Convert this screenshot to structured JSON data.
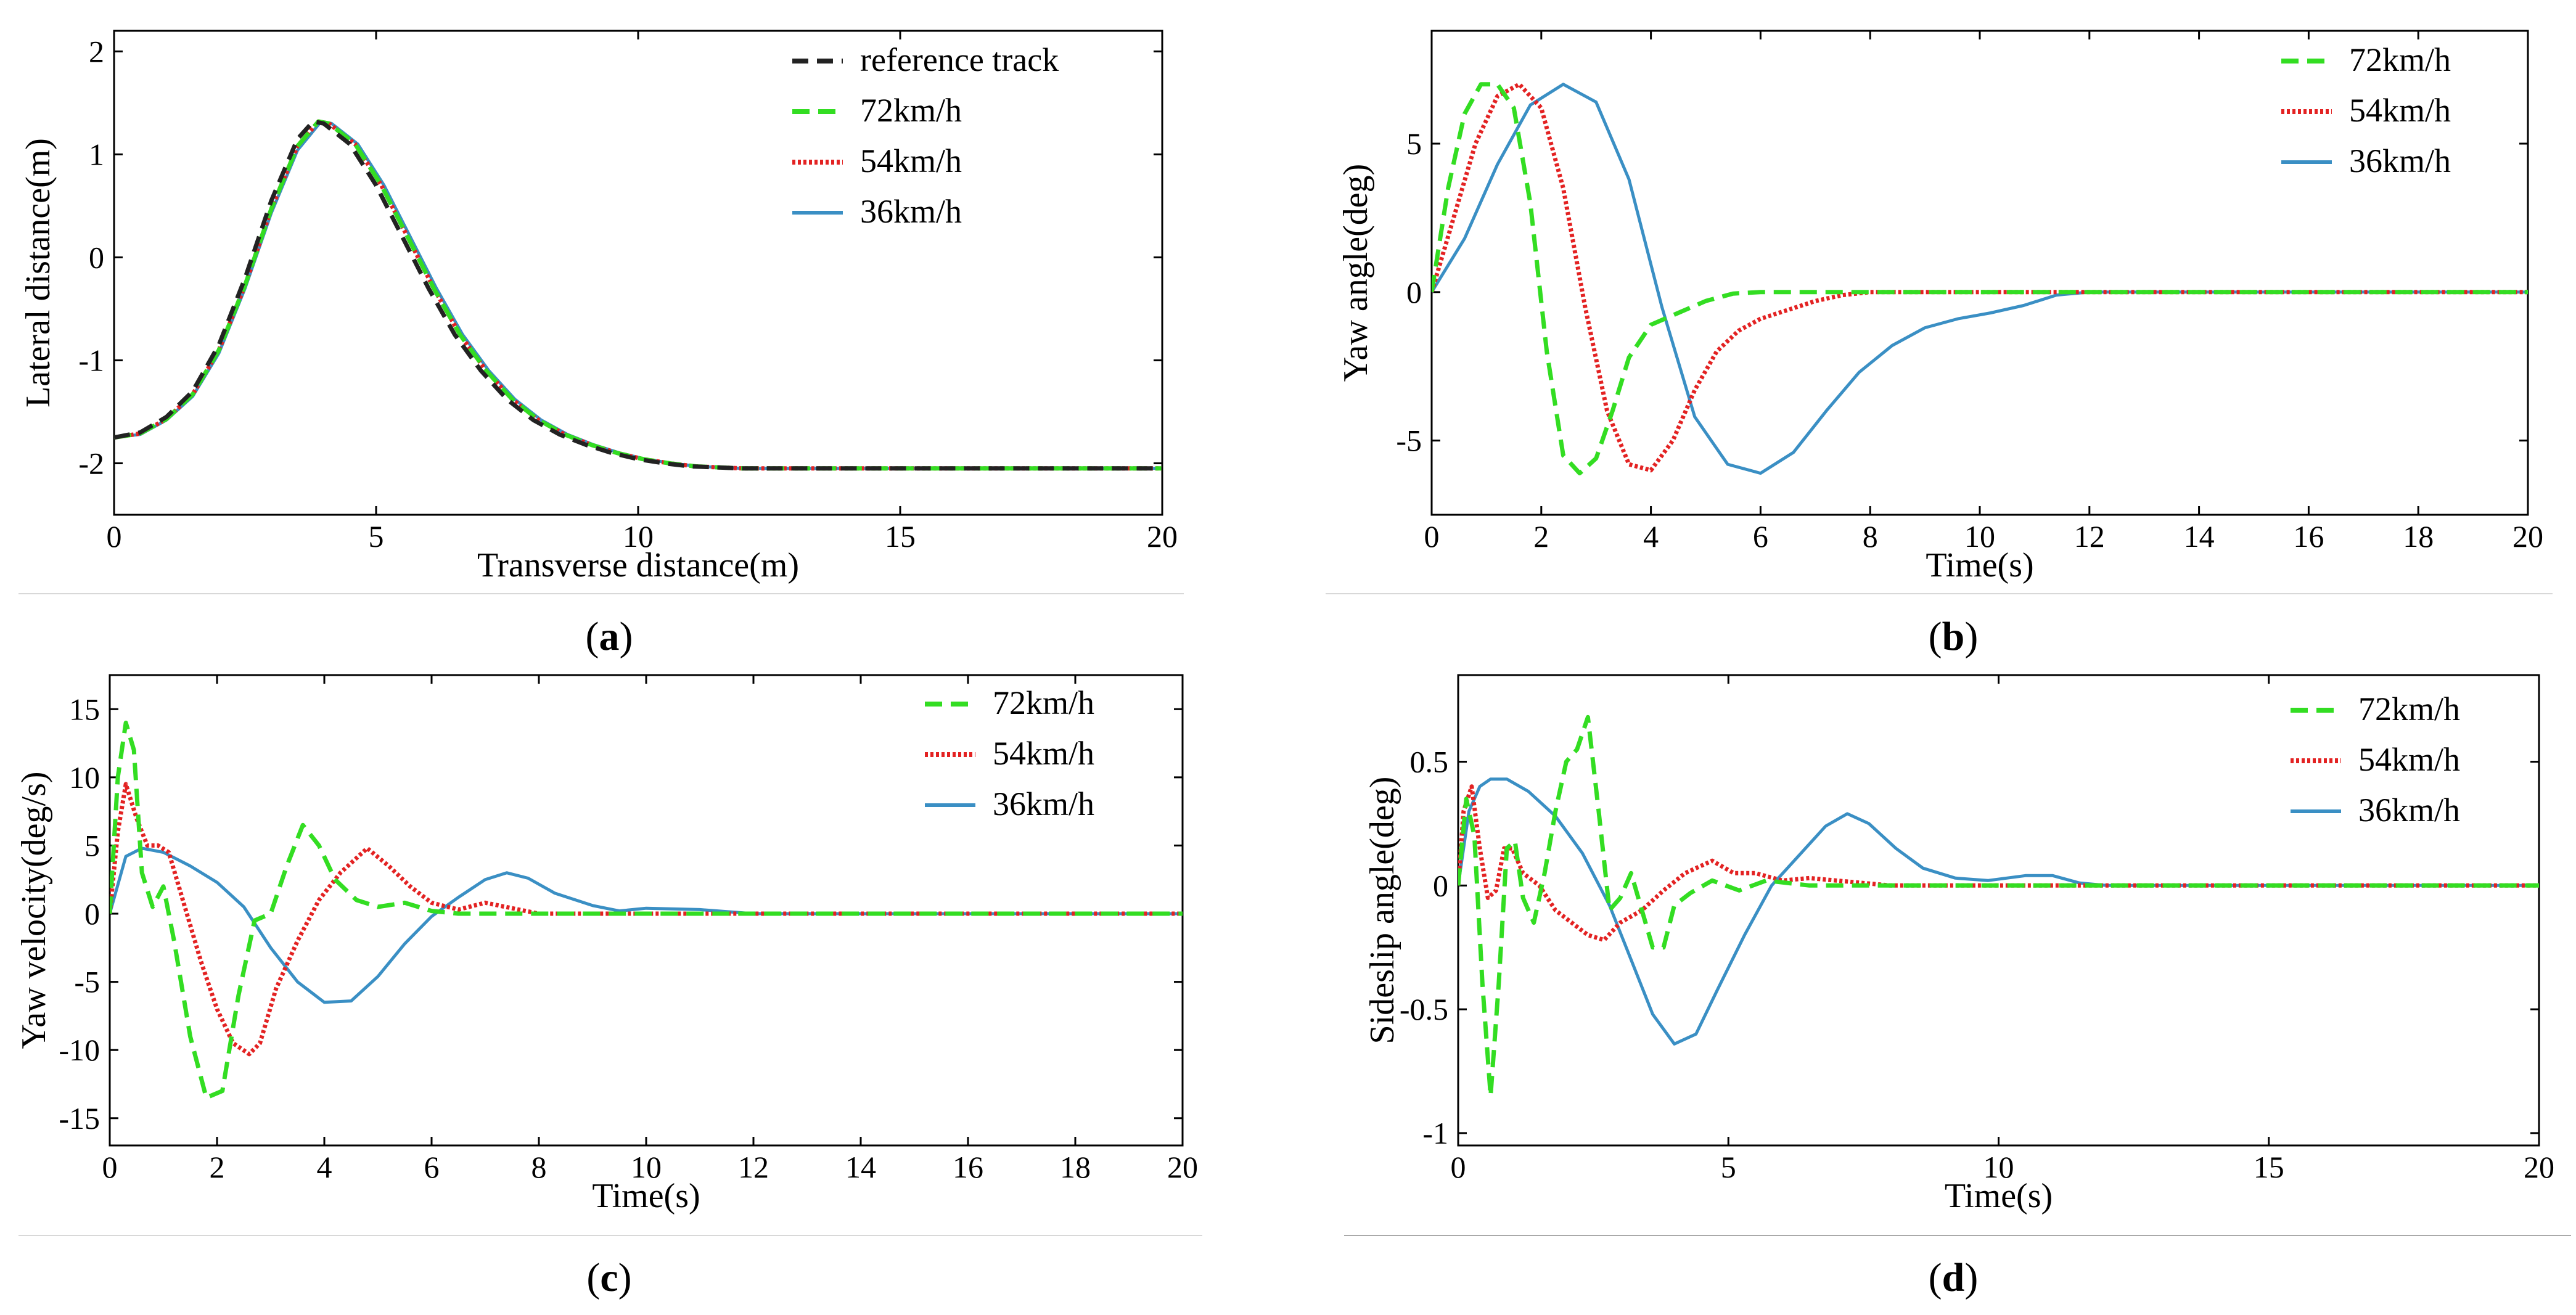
{
  "figure": {
    "captions": [
      {
        "paren_open": "(",
        "letter": "a",
        "paren_close": ")"
      },
      {
        "paren_open": "(",
        "letter": "b",
        "paren_close": ")"
      },
      {
        "paren_open": "(",
        "letter": "c",
        "paren_close": ")"
      },
      {
        "paren_open": "(",
        "letter": "d",
        "paren_close": ")"
      }
    ]
  },
  "colors": {
    "reference": "#222222",
    "v72": "#33dd22",
    "v54": "#e32222",
    "v36": "#3a8fc4",
    "axis": "#000000"
  },
  "chart_data": [
    {
      "type": "line",
      "panel": "a",
      "title": "",
      "xlabel": "Transverse distance(m)",
      "ylabel": "Lateral distance(m)",
      "xlim": [
        0,
        20
      ],
      "ylim": [
        -2.5,
        2.2
      ],
      "xticks": [
        0,
        5,
        10,
        15,
        20
      ],
      "yticks": [
        -2,
        -1,
        0,
        1,
        2
      ],
      "legend_position": "top-right",
      "legend": [
        "reference track",
        "72km/h",
        "54km/h",
        "36km/h"
      ],
      "series": [
        {
          "name": "reference track",
          "style": "reference",
          "x": [
            0,
            0.5,
            1,
            1.5,
            2,
            2.5,
            3,
            3.5,
            3.8,
            4,
            4.5,
            5,
            5.5,
            6,
            6.5,
            7,
            7.5,
            8,
            8.5,
            9,
            9.5,
            10,
            10.5,
            11,
            12,
            14,
            16,
            18,
            20
          ],
          "y": [
            -1.75,
            -1.7,
            -1.55,
            -1.3,
            -0.85,
            -0.2,
            0.55,
            1.15,
            1.32,
            1.3,
            1.1,
            0.7,
            0.2,
            -0.3,
            -0.75,
            -1.1,
            -1.38,
            -1.58,
            -1.72,
            -1.82,
            -1.9,
            -1.96,
            -2.0,
            -2.03,
            -2.05,
            -2.05,
            -2.05,
            -2.05,
            -2.05
          ]
        },
        {
          "name": "72km/h",
          "style": "v72",
          "x": [
            0,
            0.5,
            1,
            1.5,
            2,
            2.5,
            3,
            3.5,
            3.9,
            4.1,
            4.6,
            5.1,
            5.6,
            6.1,
            6.6,
            7.1,
            7.6,
            8.1,
            8.6,
            9.1,
            9.6,
            10.1,
            10.6,
            11.1,
            12,
            14,
            16,
            18,
            20
          ],
          "y": [
            -1.75,
            -1.71,
            -1.57,
            -1.33,
            -0.9,
            -0.27,
            0.47,
            1.08,
            1.32,
            1.3,
            1.1,
            0.7,
            0.2,
            -0.3,
            -0.75,
            -1.1,
            -1.38,
            -1.58,
            -1.72,
            -1.82,
            -1.9,
            -1.96,
            -2.0,
            -2.03,
            -2.05,
            -2.05,
            -2.05,
            -2.05,
            -2.05
          ]
        },
        {
          "name": "54km/h",
          "style": "v54",
          "x": [
            0,
            0.5,
            1,
            1.5,
            2,
            2.5,
            3,
            3.5,
            3.9,
            4.1,
            4.6,
            5.1,
            5.6,
            6.1,
            6.6,
            7.1,
            7.6,
            8.1,
            8.6,
            9.1,
            9.6,
            10.1,
            10.6,
            11.1,
            12,
            14,
            16,
            18,
            20
          ],
          "y": [
            -1.75,
            -1.71,
            -1.57,
            -1.33,
            -0.9,
            -0.27,
            0.47,
            1.08,
            1.32,
            1.3,
            1.1,
            0.7,
            0.2,
            -0.3,
            -0.75,
            -1.1,
            -1.38,
            -1.58,
            -1.72,
            -1.82,
            -1.9,
            -1.96,
            -2.0,
            -2.03,
            -2.05,
            -2.05,
            -2.05,
            -2.05,
            -2.05
          ]
        },
        {
          "name": "36km/h",
          "style": "v36",
          "x": [
            0,
            0.5,
            1,
            1.5,
            2,
            2.5,
            3,
            3.5,
            3.95,
            4.15,
            4.65,
            5.15,
            5.65,
            6.15,
            6.65,
            7.15,
            7.65,
            8.15,
            8.65,
            9.15,
            9.65,
            10.15,
            10.65,
            11.15,
            12,
            14,
            16,
            18,
            20
          ],
          "y": [
            -1.75,
            -1.72,
            -1.58,
            -1.35,
            -0.93,
            -0.3,
            0.43,
            1.04,
            1.32,
            1.3,
            1.1,
            0.7,
            0.2,
            -0.3,
            -0.75,
            -1.1,
            -1.38,
            -1.58,
            -1.72,
            -1.82,
            -1.9,
            -1.96,
            -2.0,
            -2.03,
            -2.05,
            -2.05,
            -2.05,
            -2.05,
            -2.05
          ]
        }
      ]
    },
    {
      "type": "line",
      "panel": "b",
      "title": "",
      "xlabel": "Time(s)",
      "ylabel": "Yaw angle(deg)",
      "xlim": [
        0,
        20
      ],
      "ylim": [
        -7.5,
        8.8
      ],
      "xticks": [
        0,
        2,
        4,
        6,
        8,
        10,
        12,
        14,
        16,
        18,
        20
      ],
      "yticks": [
        -5,
        0,
        5
      ],
      "legend_position": "top-right",
      "legend": [
        "72km/h",
        "54km/h",
        "36km/h"
      ],
      "series": [
        {
          "name": "72km/h",
          "style": "v72",
          "x": [
            0,
            0.3,
            0.6,
            0.9,
            1.2,
            1.5,
            1.8,
            2.1,
            2.4,
            2.7,
            3.0,
            3.3,
            3.6,
            4.0,
            4.5,
            5.0,
            5.5,
            6.0,
            6.5,
            7,
            8,
            10,
            12,
            14,
            16,
            18,
            20
          ],
          "y": [
            0,
            3.5,
            6.0,
            7.0,
            7.0,
            6.2,
            3.0,
            -2.0,
            -5.5,
            -6.1,
            -5.6,
            -4.0,
            -2.2,
            -1.1,
            -0.7,
            -0.3,
            -0.05,
            0,
            0,
            0,
            0,
            0,
            0,
            0,
            0,
            0,
            0
          ]
        },
        {
          "name": "54km/h",
          "style": "v54",
          "x": [
            0,
            0.4,
            0.8,
            1.2,
            1.6,
            2.0,
            2.4,
            2.8,
            3.2,
            3.6,
            4.0,
            4.4,
            4.8,
            5.2,
            5.6,
            6.0,
            6.5,
            7.0,
            7.5,
            8,
            10,
            12,
            14,
            16,
            18,
            20
          ],
          "y": [
            0,
            2.5,
            5.0,
            6.6,
            7.0,
            6.2,
            3.5,
            -0.5,
            -4.0,
            -5.8,
            -6.0,
            -5.0,
            -3.3,
            -2.0,
            -1.3,
            -0.9,
            -0.6,
            -0.3,
            -0.1,
            0,
            0,
            0,
            0,
            0,
            0,
            0
          ]
        },
        {
          "name": "36km/h",
          "style": "v36",
          "x": [
            0,
            0.6,
            1.2,
            1.8,
            2.4,
            3.0,
            3.6,
            4.2,
            4.8,
            5.4,
            6.0,
            6.6,
            7.2,
            7.8,
            8.4,
            9.0,
            9.6,
            10.2,
            10.8,
            11.4,
            12,
            14,
            16,
            18,
            20
          ],
          "y": [
            0,
            1.8,
            4.3,
            6.3,
            7.0,
            6.4,
            3.8,
            -0.5,
            -4.2,
            -5.8,
            -6.1,
            -5.4,
            -4.0,
            -2.7,
            -1.8,
            -1.2,
            -0.9,
            -0.7,
            -0.45,
            -0.1,
            0,
            0,
            0,
            0,
            0
          ]
        }
      ]
    },
    {
      "type": "line",
      "panel": "c",
      "title": "",
      "xlabel": "Time(s)",
      "ylabel": "Yaw velocity(deg/s)",
      "xlim": [
        0,
        20
      ],
      "ylim": [
        -17,
        17.5
      ],
      "xticks": [
        0,
        2,
        4,
        6,
        8,
        10,
        12,
        14,
        16,
        18,
        20
      ],
      "yticks": [
        -15,
        -10,
        -5,
        0,
        5,
        10,
        15
      ],
      "legend_position": "top-right",
      "legend": [
        "72km/h",
        "54km/h",
        "36km/h"
      ],
      "series": [
        {
          "name": "72km/h",
          "style": "v72",
          "x": [
            0,
            0.15,
            0.3,
            0.45,
            0.6,
            0.8,
            1.0,
            1.2,
            1.5,
            1.8,
            2.1,
            2.4,
            2.7,
            3.0,
            3.3,
            3.6,
            3.9,
            4.2,
            4.6,
            5.0,
            5.5,
            6.0,
            6.5,
            7,
            8,
            10,
            12,
            14,
            16,
            18,
            20
          ],
          "y": [
            0,
            10,
            14,
            12,
            3,
            0.5,
            2,
            -2,
            -9,
            -13.5,
            -13,
            -6,
            -0.5,
            0,
            3.5,
            6.5,
            5,
            2.5,
            1,
            0.5,
            0.8,
            0.2,
            0,
            0,
            0,
            0,
            0,
            0,
            0,
            0,
            0
          ]
        },
        {
          "name": "54km/h",
          "style": "v54",
          "x": [
            0,
            0.15,
            0.3,
            0.5,
            0.7,
            0.9,
            1.1,
            1.4,
            1.7,
            2.0,
            2.3,
            2.6,
            2.8,
            3.1,
            3.5,
            3.9,
            4.3,
            4.8,
            5.2,
            5.6,
            6.0,
            6.5,
            7.0,
            7.5,
            8.0,
            8.5,
            10,
            12,
            14,
            16,
            18,
            20
          ],
          "y": [
            0,
            6,
            9.5,
            7,
            5,
            5,
            4.5,
            0.5,
            -3.5,
            -7,
            -9.5,
            -10.3,
            -9.5,
            -5.5,
            -2,
            1,
            3,
            4.8,
            3.5,
            2,
            0.8,
            0.3,
            0.8,
            0.4,
            0,
            0,
            0,
            0,
            0,
            0,
            0,
            0
          ]
        },
        {
          "name": "36km/h",
          "style": "v36",
          "x": [
            0,
            0.3,
            0.6,
            1.0,
            1.5,
            2.0,
            2.5,
            3.0,
            3.5,
            4.0,
            4.5,
            5.0,
            5.5,
            6.0,
            6.5,
            7.0,
            7.4,
            7.8,
            8.3,
            9.0,
            9.5,
            10,
            11,
            12,
            14,
            16,
            18,
            20
          ],
          "y": [
            0,
            4.2,
            4.8,
            4.5,
            3.5,
            2.3,
            0.5,
            -2.5,
            -5,
            -6.5,
            -6.4,
            -4.6,
            -2.2,
            -0.2,
            1.2,
            2.5,
            3.0,
            2.6,
            1.5,
            0.6,
            0.2,
            0.4,
            0.3,
            0,
            0,
            0,
            0,
            0
          ]
        }
      ]
    },
    {
      "type": "line",
      "panel": "d",
      "title": "",
      "xlabel": "Time(s)",
      "ylabel": "Sideslip angle(deg)",
      "xlim": [
        0,
        20
      ],
      "ylim": [
        -1.05,
        0.85
      ],
      "xticks": [
        0,
        5,
        10,
        15,
        20
      ],
      "yticks": [
        -1,
        -0.5,
        0,
        0.5
      ],
      "legend_position": "top-right",
      "legend": [
        "72km/h",
        "54km/h",
        "36km/h"
      ],
      "series": [
        {
          "name": "72km/h",
          "style": "v72",
          "x": [
            0,
            0.15,
            0.3,
            0.45,
            0.6,
            0.75,
            0.9,
            1.05,
            1.2,
            1.4,
            1.6,
            1.8,
            2.0,
            2.2,
            2.4,
            2.6,
            2.8,
            3.0,
            3.2,
            3.4,
            3.6,
            3.8,
            4.0,
            4.3,
            4.7,
            5.2,
            5.7,
            6.5,
            7,
            8,
            10,
            12,
            14,
            16,
            18,
            20
          ],
          "y": [
            0,
            0.35,
            0.2,
            -0.4,
            -0.85,
            -0.4,
            0.15,
            0.18,
            -0.05,
            -0.15,
            0.05,
            0.3,
            0.5,
            0.55,
            0.68,
            0.3,
            -0.1,
            -0.05,
            0.05,
            -0.1,
            -0.25,
            -0.25,
            -0.08,
            -0.03,
            0.02,
            -0.02,
            0.02,
            0,
            0,
            0,
            0,
            0,
            0,
            0,
            0,
            0
          ]
        },
        {
          "name": "54km/h",
          "style": "v54",
          "x": [
            0,
            0.1,
            0.25,
            0.4,
            0.55,
            0.7,
            0.85,
            1.0,
            1.2,
            1.5,
            1.8,
            2.1,
            2.4,
            2.7,
            3.0,
            3.4,
            3.8,
            4.2,
            4.7,
            5.1,
            5.5,
            6.0,
            6.5,
            7.0,
            7.5,
            8.0,
            10,
            12,
            14,
            16,
            18,
            20
          ],
          "y": [
            0,
            0.3,
            0.4,
            0.15,
            -0.05,
            -0.02,
            0.15,
            0.15,
            0.05,
            0,
            -0.1,
            -0.15,
            -0.2,
            -0.22,
            -0.15,
            -0.1,
            -0.02,
            0.05,
            0.1,
            0.05,
            0.05,
            0.02,
            0.03,
            0.02,
            0.01,
            0,
            0,
            0,
            0,
            0,
            0,
            0
          ]
        },
        {
          "name": "36km/h",
          "style": "v36",
          "x": [
            0,
            0.2,
            0.4,
            0.6,
            0.9,
            1.3,
            1.8,
            2.3,
            2.8,
            3.2,
            3.6,
            4.0,
            4.4,
            4.8,
            5.3,
            5.8,
            6.3,
            6.8,
            7.2,
            7.6,
            8.1,
            8.6,
            9.2,
            9.8,
            10.5,
            11.0,
            11.5,
            12,
            14,
            16,
            18,
            20
          ],
          "y": [
            0,
            0.3,
            0.4,
            0.43,
            0.43,
            0.38,
            0.28,
            0.13,
            -0.08,
            -0.3,
            -0.52,
            -0.64,
            -0.6,
            -0.42,
            -0.2,
            0.0,
            0.12,
            0.24,
            0.29,
            0.25,
            0.15,
            0.07,
            0.03,
            0.02,
            0.04,
            0.04,
            0.01,
            0,
            0,
            0,
            0,
            0
          ]
        }
      ]
    }
  ]
}
